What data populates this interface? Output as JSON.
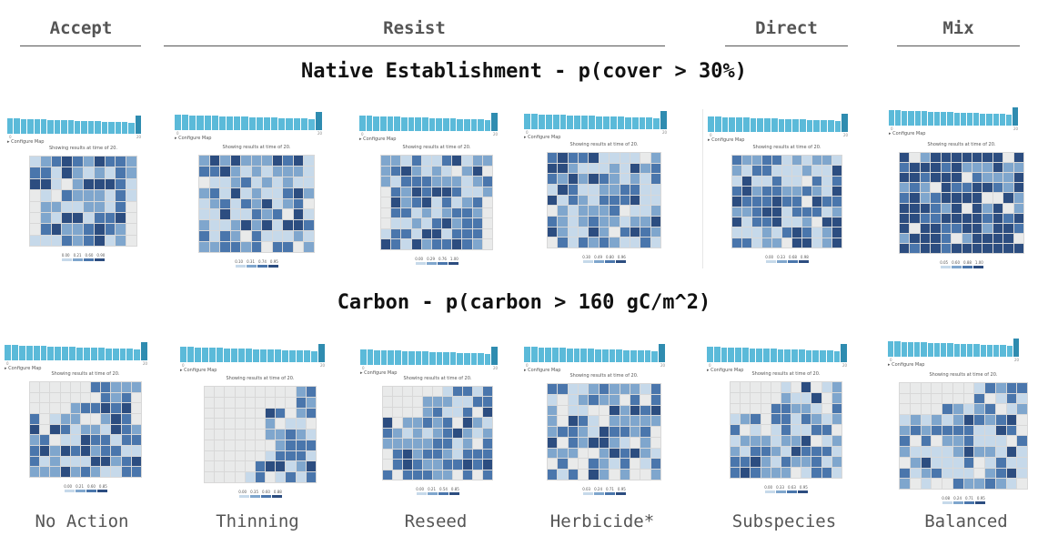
{
  "categories": [
    "Accept",
    "Resist",
    "Direct",
    "Mix"
  ],
  "row_titles": {
    "native": "Native Establishment - p(cover > 30%)",
    "carbon": "Carbon - p(carbon > 160 gC/m^2)"
  },
  "methods": [
    "No Action",
    "Thinning",
    "Reseed",
    "Herbicide*",
    "Subspecies",
    "Balanced"
  ],
  "panel_text": {
    "configure_map": "▸ Configure Map",
    "showing": "Showing results at time of 20.",
    "axis_start": "0",
    "axis_end": "20"
  },
  "colors": {
    "bar": "#5bbad9",
    "bar_current": "#2f8cb0",
    "empty_cell": "#e9eaea",
    "ramp": [
      "#c6d9ea",
      "#7fa6cd",
      "#4a76ac",
      "#2c4d80"
    ]
  },
  "panels": {
    "native": [
      {
        "legend": [
          "0.00",
          "0.21",
          "0.60",
          "0.90"
        ]
      },
      {
        "legend": [
          "0.10",
          "0.31",
          "0.74",
          "0.95"
        ]
      },
      {
        "legend": [
          "0.00",
          "0.29",
          "0.76",
          "1.00"
        ]
      },
      {
        "legend": [
          "0.30",
          "0.49",
          "0.80",
          "0.96"
        ]
      },
      {
        "legend": [
          "0.00",
          "0.33",
          "0.68",
          "0.98"
        ]
      },
      {
        "legend": [
          "0.05",
          "0.60",
          "0.88",
          "1.00"
        ]
      }
    ],
    "carbon": [
      {
        "legend": [
          "0.00",
          "0.21",
          "0.60",
          "0.85"
        ]
      },
      {
        "legend": [
          "0.00",
          "0.35",
          "0.60",
          "0.88"
        ]
      },
      {
        "legend": [
          "0.00",
          "0.21",
          "0.54",
          "0.85"
        ]
      },
      {
        "legend": [
          "0.03",
          "0.24",
          "0.71",
          "0.95"
        ]
      },
      {
        "legend": [
          "0.00",
          "0.33",
          "0.63",
          "0.95"
        ]
      },
      {
        "legend": [
          "0.08",
          "0.24",
          "0.71",
          "0.95"
        ]
      }
    ]
  }
}
